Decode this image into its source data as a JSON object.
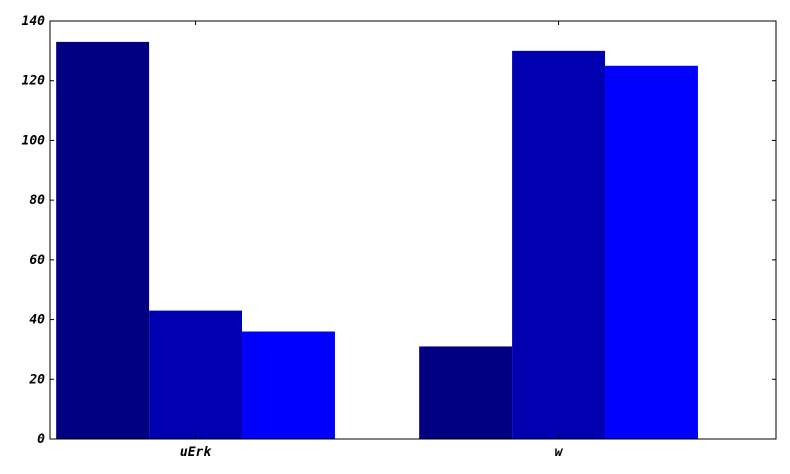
{
  "chart_data": {
    "type": "bar",
    "categories": [
      "uErk",
      "w"
    ],
    "series": [
      {
        "values": [
          133,
          31
        ],
        "color": "#000080"
      },
      {
        "values": [
          43,
          130
        ],
        "color": "#0000b0"
      },
      {
        "values": [
          36,
          125
        ],
        "color": "#0000ff"
      }
    ],
    "ylim": [
      0,
      140
    ],
    "yticks": [
      0,
      20,
      40,
      60,
      80,
      100,
      120,
      140
    ],
    "ytick_labels": [
      "0",
      "20",
      "40",
      "60",
      "80",
      "100",
      "120",
      "140"
    ],
    "grid": false,
    "title": "",
    "xlabel": "",
    "ylabel": ""
  }
}
